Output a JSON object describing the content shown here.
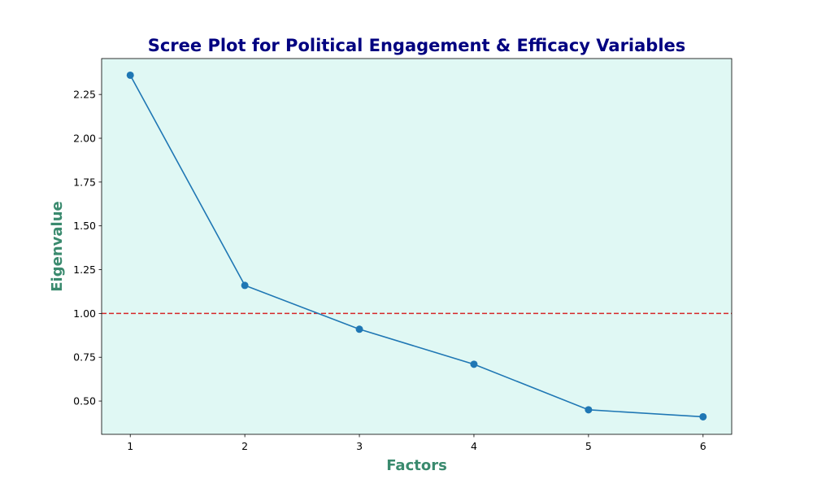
{
  "chart_data": {
    "type": "line",
    "title": "Scree Plot for Political Engagement & Efficacy Variables",
    "xlabel": "Factors",
    "ylabel": "Eigenvalue",
    "x": [
      1,
      2,
      3,
      4,
      5,
      6
    ],
    "x_tick_labels": [
      "1",
      "2",
      "3",
      "4",
      "5",
      "6"
    ],
    "values": [
      2.36,
      1.16,
      0.91,
      0.71,
      0.45,
      0.41
    ],
    "xlim": [
      0.75,
      6.25
    ],
    "ylim": [
      0.31,
      2.455
    ],
    "y_ticks": [
      0.5,
      0.75,
      1.0,
      1.25,
      1.5,
      1.75,
      2.0,
      2.25
    ],
    "y_tick_labels": [
      "0.50",
      "0.75",
      "1.00",
      "1.25",
      "1.50",
      "1.75",
      "2.00",
      "2.25"
    ],
    "reference_line": {
      "y": 1.0,
      "style": "dashed",
      "color": "#d62728"
    },
    "grid": false,
    "colors": {
      "line": "#1f77b4",
      "plot_background": "#e0f8f4",
      "title": "#000080",
      "axis_label": "#3a8a6e"
    }
  }
}
